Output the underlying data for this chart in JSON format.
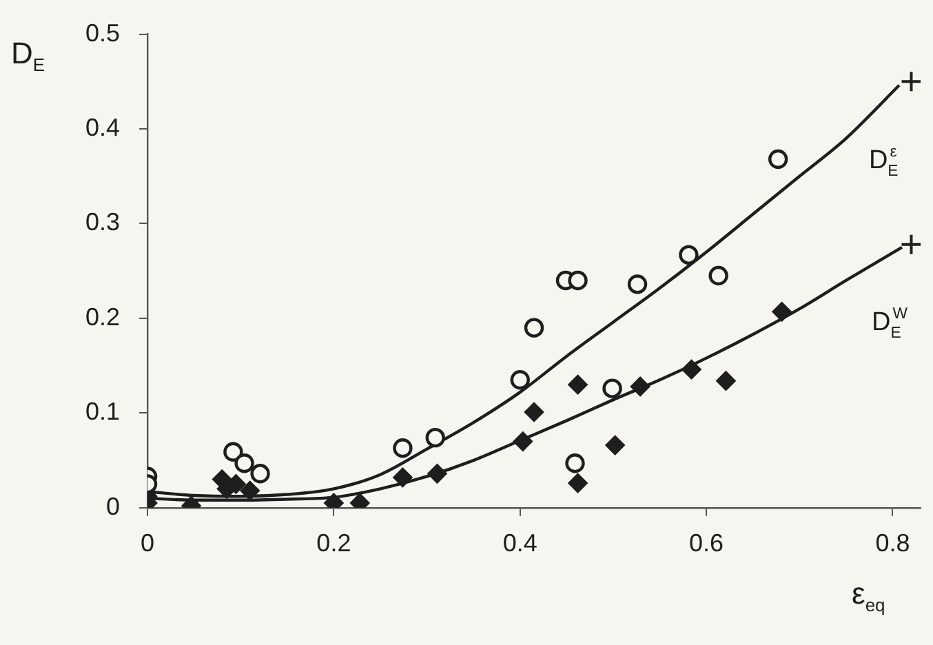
{
  "chart_data": {
    "type": "scatter",
    "xlabel": "ε$_{eq}$",
    "ylabel": "D$_{E}$",
    "xlim": [
      0,
      0.83
    ],
    "ylim": [
      0,
      0.5
    ],
    "xticks": [
      0,
      0.2,
      0.4,
      0.6,
      0.8
    ],
    "yticks": [
      0,
      0.1,
      0.2,
      0.3,
      0.4,
      0.5
    ],
    "grid": false,
    "legend": false,
    "series": [
      {
        "type": "scatter",
        "marker": "circle",
        "color": "#1e1e1e",
        "x": [
          0,
          0,
          0.092,
          0.104,
          0.121,
          0.274,
          0.309,
          0.4,
          0.415,
          0.449,
          0.462,
          0.459,
          0.499,
          0.526,
          0.581,
          0.613,
          0.677
        ],
        "values": [
          0.033,
          0.025,
          0.059,
          0.047,
          0.036,
          0.063,
          0.074,
          0.135,
          0.19,
          0.24,
          0.24,
          0.047,
          0.126,
          0.236,
          0.267,
          0.245,
          0.368
        ]
      },
      {
        "type": "scatter",
        "marker": "diamond",
        "color": "#1e1e1e",
        "x": [
          0,
          0,
          0.047,
          0.08,
          0.085,
          0.095,
          0.11,
          0.2,
          0.228,
          0.274,
          0.311,
          0.403,
          0.415,
          0.462,
          0.462,
          0.502,
          0.529,
          0.584,
          0.621,
          0.681
        ],
        "values": [
          0.012,
          0.005,
          0.002,
          0.03,
          0.02,
          0.025,
          0.018,
          0.005,
          0.005,
          0.032,
          0.036,
          0.07,
          0.101,
          0.13,
          0.026,
          0.066,
          0.128,
          0.146,
          0.134,
          0.207
        ]
      },
      {
        "type": "line",
        "name": "D$_{E}$$^{ε}$",
        "marker": "none",
        "color": "#1e1e1e",
        "x": [
          0,
          0.05,
          0.1,
          0.15,
          0.2,
          0.25,
          0.3,
          0.35,
          0.4,
          0.45,
          0.5,
          0.55,
          0.6,
          0.65,
          0.7,
          0.75,
          0.807
        ],
        "values": [
          0.017,
          0.013,
          0.012,
          0.014,
          0.02,
          0.035,
          0.062,
          0.09,
          0.122,
          0.16,
          0.196,
          0.232,
          0.27,
          0.31,
          0.35,
          0.39,
          0.446
        ]
      },
      {
        "type": "line",
        "name": "D$_{E}$$^{W}$",
        "marker": "none",
        "color": "#1e1e1e",
        "x": [
          0,
          0.05,
          0.1,
          0.15,
          0.2,
          0.25,
          0.3,
          0.35,
          0.4,
          0.45,
          0.5,
          0.55,
          0.6,
          0.65,
          0.7,
          0.75,
          0.81
        ],
        "values": [
          0.01,
          0.008,
          0.008,
          0.009,
          0.011,
          0.02,
          0.033,
          0.05,
          0.071,
          0.092,
          0.114,
          0.135,
          0.158,
          0.183,
          0.21,
          0.24,
          0.275
        ]
      },
      {
        "type": "scatter",
        "marker": "cross",
        "color": "#1e1e1e",
        "x": [
          0.82,
          0.82
        ],
        "values": [
          0.45,
          0.278
        ]
      }
    ]
  }
}
